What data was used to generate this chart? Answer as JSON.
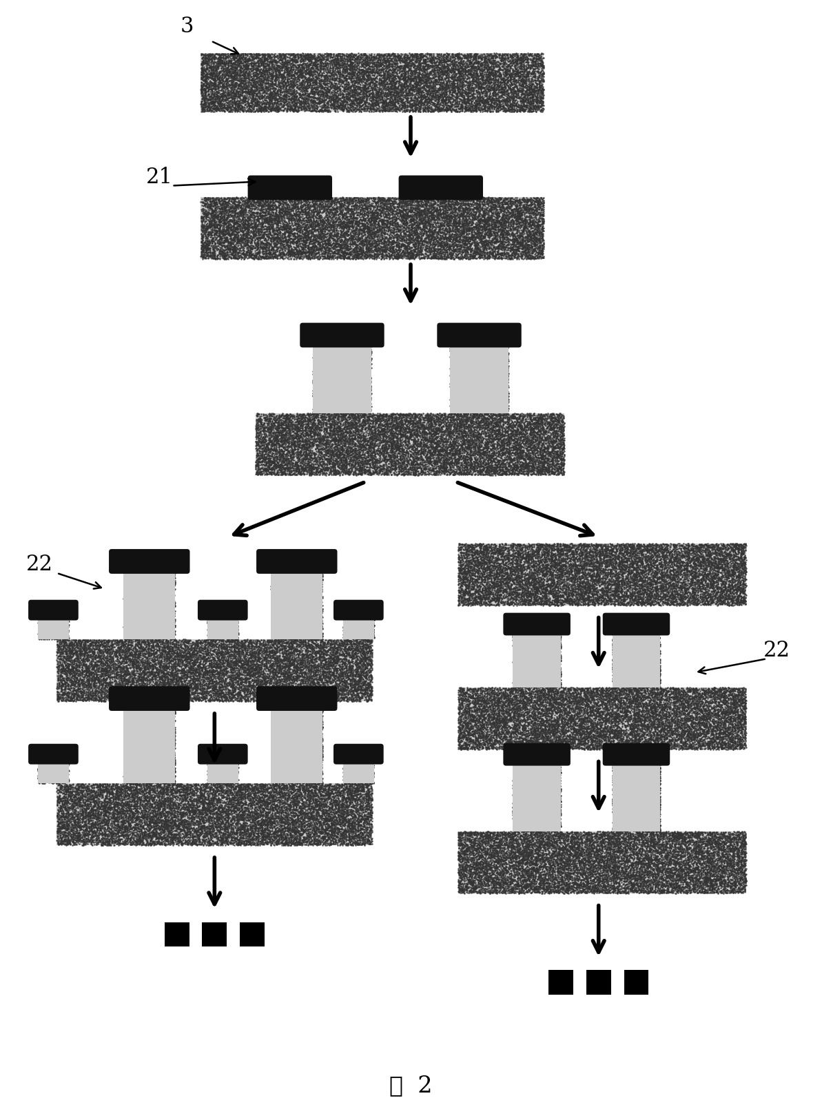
{
  "bg_color": "#ffffff",
  "title": "图  2",
  "label_3": "3",
  "label_21": "21",
  "label_22_left": "22",
  "label_22_right": "22",
  "hatch_color": "#555555",
  "mask_color": "#111111",
  "edge_color": "#333333"
}
